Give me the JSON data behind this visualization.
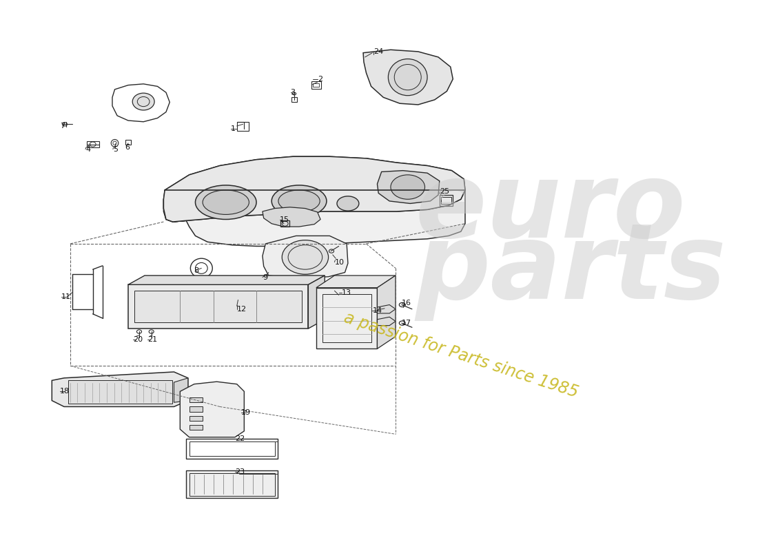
{
  "background_color": "#ffffff",
  "line_color": "#2a2a2a",
  "watermark_text1": "euro",
  "watermark_text2": "parts",
  "watermark_sub": "a passion for Parts since 1985",
  "wm_gray": "#bbbbbb",
  "wm_yellow": "#d4c84a"
}
